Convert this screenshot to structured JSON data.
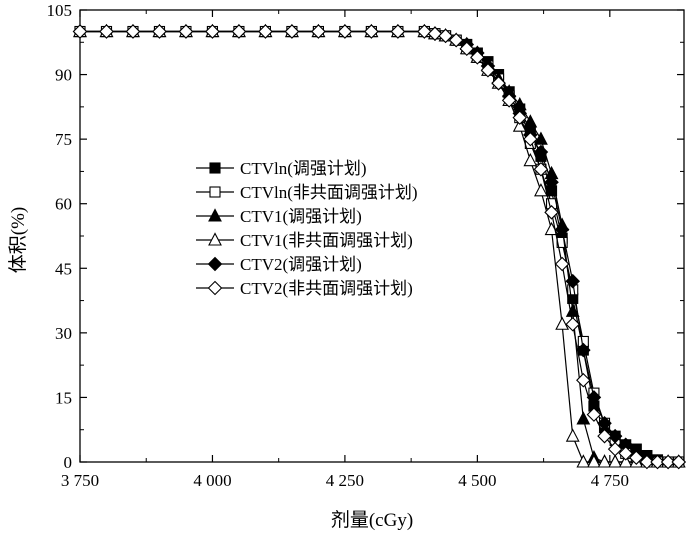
{
  "chart_data": {
    "type": "line",
    "title": "",
    "xlabel": "剂量(cGy)",
    "ylabel": "体积(%)",
    "xlim": [
      3750,
      4890
    ],
    "ylim": [
      0,
      105
    ],
    "x_ticks": [
      3750,
      4000,
      4250,
      4500,
      4750
    ],
    "x_tick_labels": [
      "3 750",
      "4 000",
      "4 250",
      "4 500",
      "4 750"
    ],
    "y_ticks": [
      0,
      15,
      30,
      45,
      60,
      75,
      90,
      105
    ],
    "y_tick_labels": [
      "0",
      "15",
      "30",
      "45",
      "60",
      "75",
      "90",
      "105"
    ],
    "grid": false,
    "legend_position": "center-left",
    "series": [
      {
        "name": "CTVln(调强计划)",
        "marker": "square",
        "filled": true,
        "points": [
          [
            3750,
            100
          ],
          [
            3800,
            100
          ],
          [
            3850,
            100
          ],
          [
            3900,
            100
          ],
          [
            3950,
            100
          ],
          [
            4000,
            100
          ],
          [
            4050,
            100
          ],
          [
            4100,
            100
          ],
          [
            4150,
            100
          ],
          [
            4200,
            100
          ],
          [
            4250,
            100
          ],
          [
            4300,
            100
          ],
          [
            4350,
            100
          ],
          [
            4400,
            100
          ],
          [
            4420,
            99.5
          ],
          [
            4440,
            99
          ],
          [
            4460,
            98
          ],
          [
            4480,
            97
          ],
          [
            4500,
            95
          ],
          [
            4520,
            93
          ],
          [
            4540,
            90
          ],
          [
            4560,
            86
          ],
          [
            4580,
            82
          ],
          [
            4600,
            77
          ],
          [
            4620,
            71
          ],
          [
            4640,
            63
          ],
          [
            4660,
            52
          ],
          [
            4680,
            38
          ],
          [
            4700,
            26
          ],
          [
            4720,
            13
          ],
          [
            4740,
            8
          ],
          [
            4760,
            6
          ],
          [
            4780,
            4
          ],
          [
            4800,
            3
          ],
          [
            4820,
            1.5
          ],
          [
            4840,
            0.5
          ],
          [
            4860,
            0
          ],
          [
            4880,
            0
          ]
        ]
      },
      {
        "name": "CTVln(非共面调强计划)",
        "marker": "square",
        "filled": false,
        "points": [
          [
            3750,
            100
          ],
          [
            3800,
            100
          ],
          [
            3850,
            100
          ],
          [
            3900,
            100
          ],
          [
            3950,
            100
          ],
          [
            4000,
            100
          ],
          [
            4050,
            100
          ],
          [
            4100,
            100
          ],
          [
            4150,
            100
          ],
          [
            4200,
            100
          ],
          [
            4250,
            100
          ],
          [
            4300,
            100
          ],
          [
            4350,
            100
          ],
          [
            4400,
            100
          ],
          [
            4420,
            99.5
          ],
          [
            4440,
            99
          ],
          [
            4460,
            98
          ],
          [
            4480,
            96
          ],
          [
            4500,
            94
          ],
          [
            4520,
            92
          ],
          [
            4540,
            89
          ],
          [
            4560,
            85
          ],
          [
            4580,
            80
          ],
          [
            4600,
            74
          ],
          [
            4620,
            68
          ],
          [
            4640,
            60
          ],
          [
            4660,
            51
          ],
          [
            4680,
            40
          ],
          [
            4700,
            28
          ],
          [
            4720,
            16
          ],
          [
            4740,
            9
          ],
          [
            4760,
            5
          ],
          [
            4780,
            2
          ],
          [
            4800,
            1
          ],
          [
            4820,
            0
          ],
          [
            4840,
            0
          ],
          [
            4860,
            0
          ],
          [
            4880,
            0
          ]
        ]
      },
      {
        "name": "CTV1(调强计划)",
        "marker": "triangle",
        "filled": true,
        "points": [
          [
            3750,
            100
          ],
          [
            3800,
            100
          ],
          [
            3850,
            100
          ],
          [
            3900,
            100
          ],
          [
            3950,
            100
          ],
          [
            4000,
            100
          ],
          [
            4050,
            100
          ],
          [
            4100,
            100
          ],
          [
            4150,
            100
          ],
          [
            4200,
            100
          ],
          [
            4250,
            100
          ],
          [
            4300,
            100
          ],
          [
            4350,
            100
          ],
          [
            4400,
            100
          ],
          [
            4420,
            99.5
          ],
          [
            4440,
            99
          ],
          [
            4460,
            98
          ],
          [
            4480,
            97
          ],
          [
            4500,
            95
          ],
          [
            4520,
            92
          ],
          [
            4540,
            89
          ],
          [
            4560,
            86
          ],
          [
            4580,
            83
          ],
          [
            4600,
            79
          ],
          [
            4620,
            75
          ],
          [
            4640,
            67
          ],
          [
            4660,
            55
          ],
          [
            4680,
            35
          ],
          [
            4700,
            10
          ],
          [
            4720,
            1
          ],
          [
            4740,
            0
          ],
          [
            4760,
            0
          ],
          [
            4780,
            0
          ],
          [
            4800,
            0
          ],
          [
            4820,
            0
          ],
          [
            4840,
            0
          ],
          [
            4860,
            0
          ],
          [
            4880,
            0
          ]
        ]
      },
      {
        "name": "CTV1(非共面调强计划)",
        "marker": "triangle",
        "filled": false,
        "points": [
          [
            3750,
            100
          ],
          [
            3800,
            100
          ],
          [
            3850,
            100
          ],
          [
            3900,
            100
          ],
          [
            3950,
            100
          ],
          [
            4000,
            100
          ],
          [
            4050,
            100
          ],
          [
            4100,
            100
          ],
          [
            4150,
            100
          ],
          [
            4200,
            100
          ],
          [
            4250,
            100
          ],
          [
            4300,
            100
          ],
          [
            4350,
            100
          ],
          [
            4400,
            100
          ],
          [
            4420,
            99.5
          ],
          [
            4440,
            99
          ],
          [
            4460,
            98
          ],
          [
            4480,
            96
          ],
          [
            4500,
            94
          ],
          [
            4520,
            91
          ],
          [
            4540,
            88
          ],
          [
            4560,
            84
          ],
          [
            4580,
            78
          ],
          [
            4600,
            70
          ],
          [
            4620,
            63
          ],
          [
            4640,
            54
          ],
          [
            4660,
            32
          ],
          [
            4680,
            6
          ],
          [
            4700,
            0
          ],
          [
            4720,
            0
          ],
          [
            4740,
            0
          ],
          [
            4760,
            0
          ],
          [
            4780,
            0
          ],
          [
            4800,
            0
          ],
          [
            4820,
            0
          ],
          [
            4840,
            0
          ],
          [
            4860,
            0
          ],
          [
            4880,
            0
          ]
        ]
      },
      {
        "name": "CTV2(调强计划)",
        "marker": "diamond",
        "filled": true,
        "points": [
          [
            3750,
            100
          ],
          [
            3800,
            100
          ],
          [
            3850,
            100
          ],
          [
            3900,
            100
          ],
          [
            3950,
            100
          ],
          [
            4000,
            100
          ],
          [
            4050,
            100
          ],
          [
            4100,
            100
          ],
          [
            4150,
            100
          ],
          [
            4200,
            100
          ],
          [
            4250,
            100
          ],
          [
            4300,
            100
          ],
          [
            4350,
            100
          ],
          [
            4400,
            100
          ],
          [
            4420,
            99.5
          ],
          [
            4440,
            99
          ],
          [
            4460,
            98
          ],
          [
            4480,
            97
          ],
          [
            4500,
            95
          ],
          [
            4520,
            92
          ],
          [
            4540,
            88
          ],
          [
            4560,
            85
          ],
          [
            4580,
            81
          ],
          [
            4600,
            76
          ],
          [
            4620,
            72
          ],
          [
            4640,
            65
          ],
          [
            4660,
            54
          ],
          [
            4680,
            42
          ],
          [
            4700,
            26
          ],
          [
            4720,
            15
          ],
          [
            4740,
            9
          ],
          [
            4760,
            6
          ],
          [
            4780,
            4
          ],
          [
            4800,
            2
          ],
          [
            4820,
            1
          ],
          [
            4840,
            0
          ],
          [
            4860,
            0
          ],
          [
            4880,
            0
          ]
        ]
      },
      {
        "name": "CTV2(非共面调强计划)",
        "marker": "diamond",
        "filled": false,
        "points": [
          [
            3750,
            100
          ],
          [
            3800,
            100
          ],
          [
            3850,
            100
          ],
          [
            3900,
            100
          ],
          [
            3950,
            100
          ],
          [
            4000,
            100
          ],
          [
            4050,
            100
          ],
          [
            4100,
            100
          ],
          [
            4150,
            100
          ],
          [
            4200,
            100
          ],
          [
            4250,
            100
          ],
          [
            4300,
            100
          ],
          [
            4350,
            100
          ],
          [
            4400,
            100
          ],
          [
            4420,
            99.5
          ],
          [
            4440,
            99
          ],
          [
            4460,
            98
          ],
          [
            4480,
            96
          ],
          [
            4500,
            94
          ],
          [
            4520,
            91
          ],
          [
            4540,
            88
          ],
          [
            4560,
            84
          ],
          [
            4580,
            80
          ],
          [
            4600,
            75
          ],
          [
            4620,
            68
          ],
          [
            4640,
            58
          ],
          [
            4660,
            46
          ],
          [
            4680,
            32
          ],
          [
            4700,
            19
          ],
          [
            4720,
            11
          ],
          [
            4740,
            6
          ],
          [
            4760,
            3
          ],
          [
            4780,
            2
          ],
          [
            4800,
            1
          ],
          [
            4820,
            0
          ],
          [
            4840,
            0
          ],
          [
            4860,
            0
          ],
          [
            4880,
            0
          ]
        ]
      }
    ]
  }
}
